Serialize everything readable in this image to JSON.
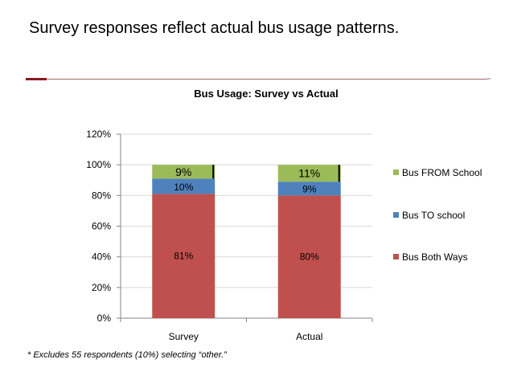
{
  "slide": {
    "title": "Survey responses reflect actual bus usage patterns.",
    "footnote": "* Excludes 55 respondents (10%) selecting “other.”"
  },
  "colors": {
    "both": "#c0504d",
    "to": "#4f81bd",
    "from": "#9bbb59",
    "accent_rule": "#8b1a1a"
  },
  "chart_data": {
    "type": "bar",
    "stacked": true,
    "title": "Bus Usage:  Survey vs Actual",
    "categories": [
      "Survey",
      "Actual"
    ],
    "series": [
      {
        "name": "Bus Both Ways",
        "values": [
          81,
          80
        ],
        "labels": [
          "81%",
          "80%"
        ],
        "color": "#c0504d"
      },
      {
        "name": "Bus TO school",
        "values": [
          10,
          9
        ],
        "labels": [
          "10%",
          "9%"
        ],
        "color": "#4f81bd"
      },
      {
        "name": "Bus FROM School",
        "values": [
          9,
          11
        ],
        "labels": [
          "9%",
          "11%"
        ],
        "color": "#9bbb59"
      }
    ],
    "ylim": [
      0,
      120
    ],
    "yticks": [
      "0%",
      "20%",
      "40%",
      "60%",
      "80%",
      "100%",
      "120%"
    ],
    "ytick_values": [
      0,
      20,
      40,
      60,
      80,
      100,
      120
    ],
    "grid": true,
    "legend_position": "right"
  }
}
